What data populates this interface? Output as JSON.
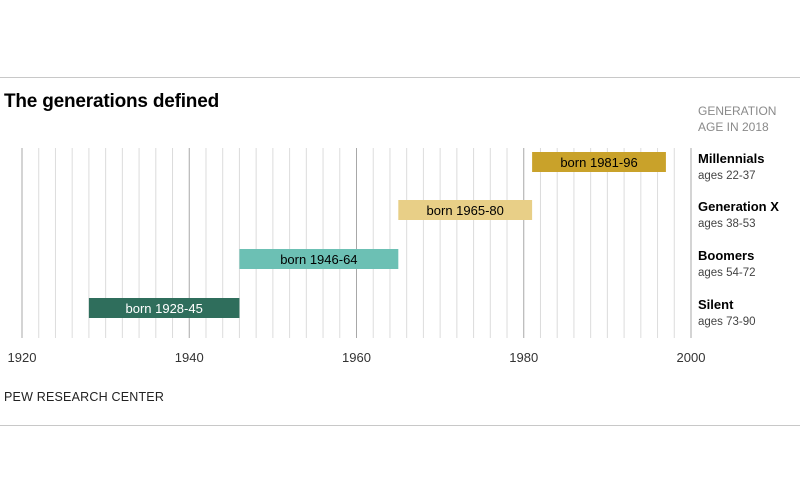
{
  "page": {
    "title": "The generations defined",
    "legend_heading_line1": "GENERATION",
    "legend_heading_line2": "AGE IN 2018",
    "source": "PEW RESEARCH CENTER"
  },
  "chart_data": {
    "type": "bar",
    "orientation": "horizontal-range",
    "xlim": [
      1920,
      2000
    ],
    "xticks": [
      1920,
      1940,
      1960,
      1980,
      2000
    ],
    "minor_grid_step": 2,
    "grid": true,
    "bars": [
      {
        "generation": "Millennials",
        "ages": "ages 22-37",
        "label": "born 1981-96",
        "start": 1981,
        "end": 1997,
        "color": "#c9a22a",
        "text_color": "#000000"
      },
      {
        "generation": "Generation X",
        "ages": "ages 38-53",
        "label": "born 1965-80",
        "start": 1965,
        "end": 1981,
        "color": "#e8cf87",
        "text_color": "#000000"
      },
      {
        "generation": "Boomers",
        "ages": "ages 54-72",
        "label": "born 1946-64",
        "start": 1946,
        "end": 1965,
        "color": "#6cc0b4",
        "text_color": "#000000"
      },
      {
        "generation": "Silent",
        "ages": "ages 73-90",
        "label": "born 1928-45",
        "start": 1928,
        "end": 1946,
        "color": "#2f6e5c",
        "text_color": "#ffffff"
      }
    ]
  }
}
